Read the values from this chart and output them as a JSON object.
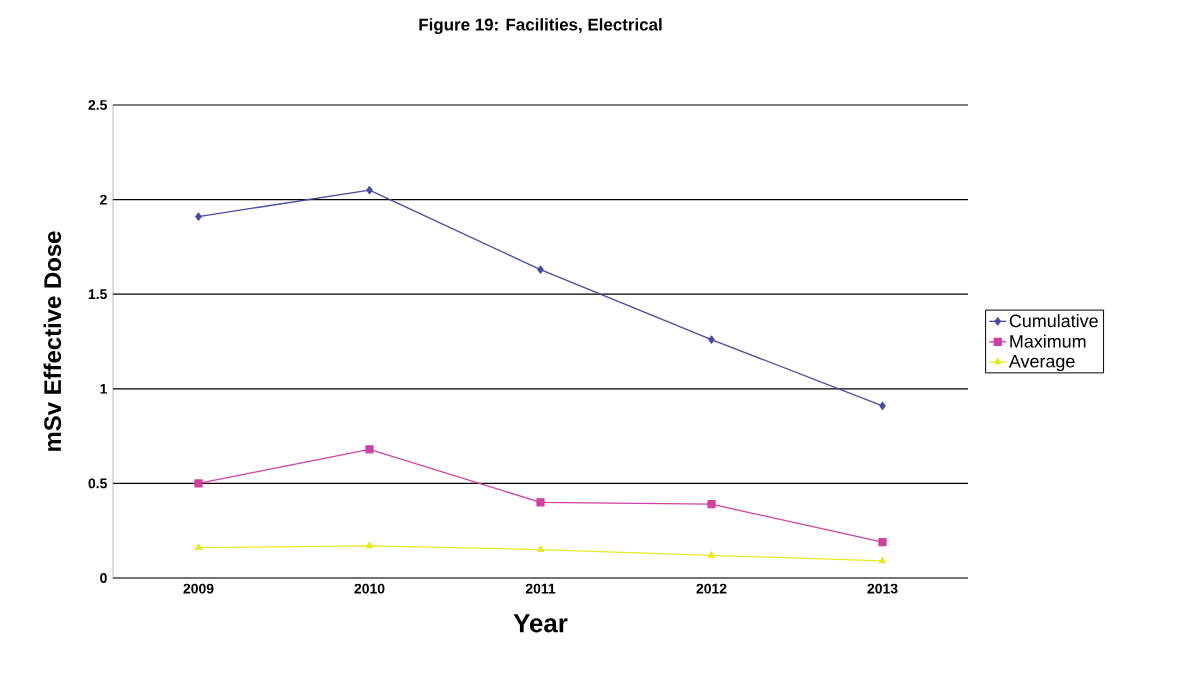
{
  "chart_data": {
    "type": "line",
    "title": "Figure 19: Facilities, Electrical",
    "xlabel": "Year",
    "ylabel": "mSv Effective Dose",
    "categories": [
      "2009",
      "2010",
      "2011",
      "2012",
      "2013"
    ],
    "series": [
      {
        "name": "Cumulative",
        "color": "#4a4aa0",
        "marker": "diamond",
        "values": [
          1.91,
          2.05,
          1.63,
          1.26,
          0.91
        ]
      },
      {
        "name": "Maximum",
        "color": "#d040a0",
        "marker": "square",
        "values": [
          0.5,
          0.68,
          0.4,
          0.39,
          0.19
        ]
      },
      {
        "name": "Average",
        "color": "#e8e820",
        "marker": "triangle",
        "values": [
          0.16,
          0.17,
          0.15,
          0.12,
          0.09
        ]
      }
    ],
    "ylim": [
      0,
      2.5
    ],
    "yticks": [
      0,
      0.5,
      1,
      1.5,
      2,
      2.5
    ],
    "grid": "y",
    "legend": "right"
  }
}
